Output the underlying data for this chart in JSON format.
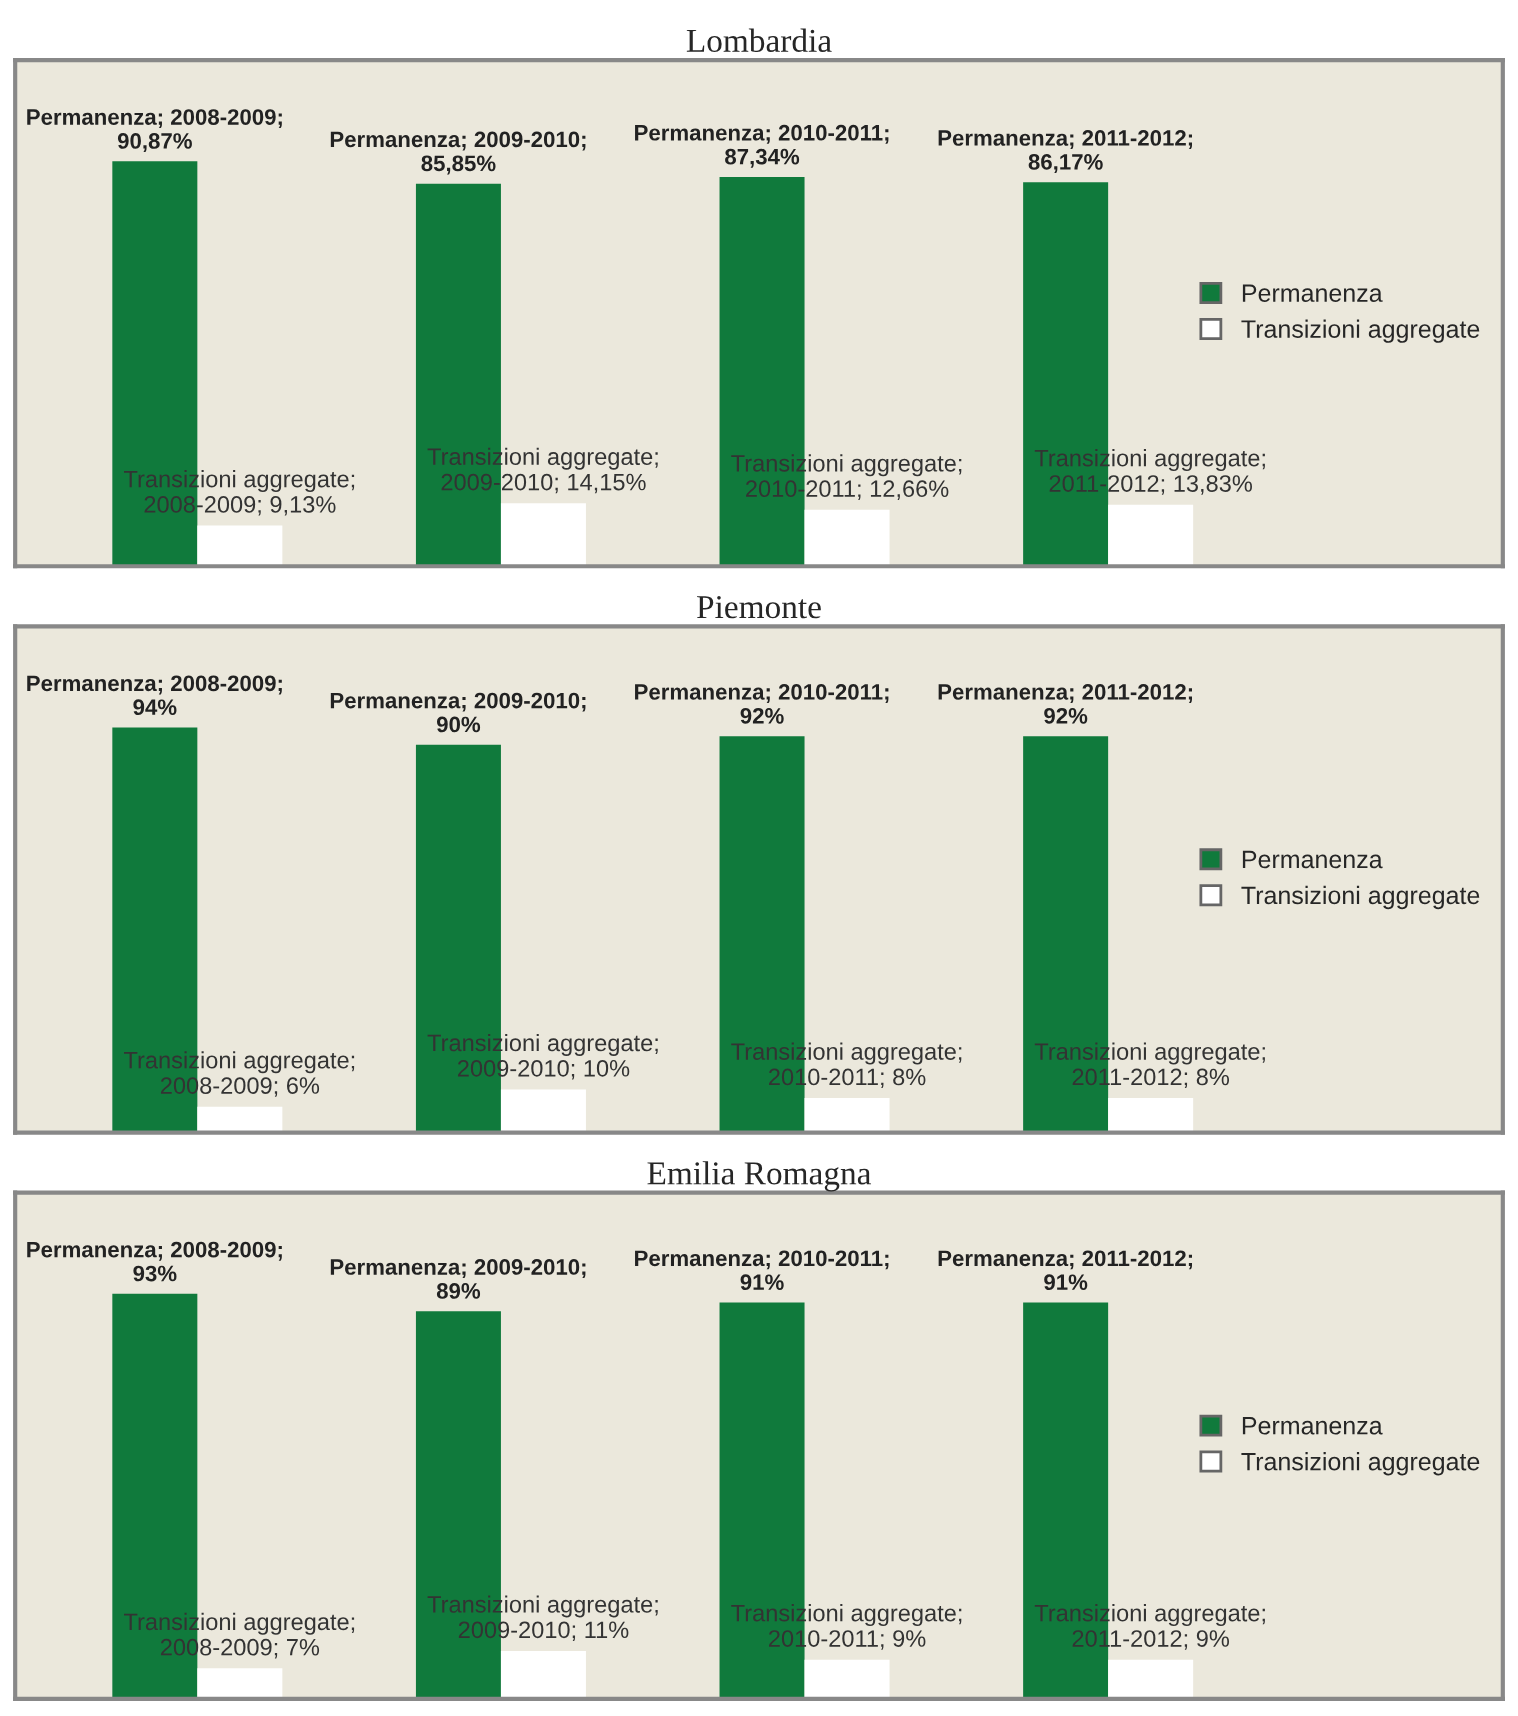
{
  "chart_data": [
    {
      "type": "bar",
      "title": "Lombardia",
      "categories": [
        null,
        null,
        null,
        null
      ],
      "legend": "right",
      "series": [
        {
          "name": "Permanenza",
          "color": "#107a3c",
          "values": [
            90.87,
            85.85,
            87.34,
            86.17
          ],
          "value_labels": [
            "Permanenza; 2008-2009;\n90,87%",
            "Permanenza; 2009-2010;\n85,85%",
            "Permanenza; 2010-2011;\n87,34%",
            "Permanenza; 2011-2012;\n86,17%"
          ]
        },
        {
          "name": "Transizioni aggregate",
          "color": "#ffffff",
          "values": [
            9.13,
            14.15,
            12.66,
            13.83
          ],
          "value_labels": [
            "Transizioni aggregate;\n2008-2009; 9,13%",
            "Transizioni aggregate;\n2009-2010; 14,15%",
            "Transizioni aggregate;\n2010-2011; 12,66%",
            "Transizioni aggregate;\n2011-2012; 13,83%"
          ]
        }
      ]
    },
    {
      "type": "bar",
      "title": "Piemonte",
      "categories": [
        null,
        null,
        null,
        null
      ],
      "legend": "right",
      "series": [
        {
          "name": "Permanenza",
          "color": "#107a3c",
          "values": [
            94,
            90,
            92,
            92
          ],
          "value_labels": [
            "Permanenza; 2008-2009;\n94%",
            "Permanenza; 2009-2010;\n90%",
            "Permanenza; 2010-2011;\n92%",
            "Permanenza; 2011-2012;\n92%"
          ]
        },
        {
          "name": "Transizioni aggregate",
          "color": "#ffffff",
          "values": [
            6,
            10,
            8,
            8
          ],
          "value_labels": [
            "Transizioni aggregate;\n2008-2009; 6%",
            "Transizioni aggregate;\n2009-2010; 10%",
            "Transizioni aggregate;\n2010-2011; 8%",
            "Transizioni aggregate;\n2011-2012; 8%"
          ]
        }
      ]
    },
    {
      "type": "bar",
      "title": "Emilia Romagna",
      "categories": [
        null,
        null,
        null,
        null
      ],
      "legend": "right",
      "series": [
        {
          "name": "Permanenza",
          "color": "#107a3c",
          "values": [
            93,
            89,
            91,
            91
          ],
          "value_labels": [
            "Permanenza; 2008-2009;\n93%",
            "Permanenza; 2009-2010;\n89%",
            "Permanenza; 2010-2011;\n91%",
            "Permanenza; 2011-2012;\n91%"
          ]
        },
        {
          "name": "Transizioni aggregate",
          "color": "#ffffff",
          "values": [
            7,
            11,
            9,
            9
          ],
          "value_labels": [
            "Transizioni aggregate;\n2008-2009; 7%",
            "Transizioni aggregate;\n2009-2010; 11%",
            "Transizioni aggregate;\n2010-2011; 9%",
            "Transizioni aggregate;\n2011-2012; 9%"
          ]
        }
      ]
    }
  ]
}
